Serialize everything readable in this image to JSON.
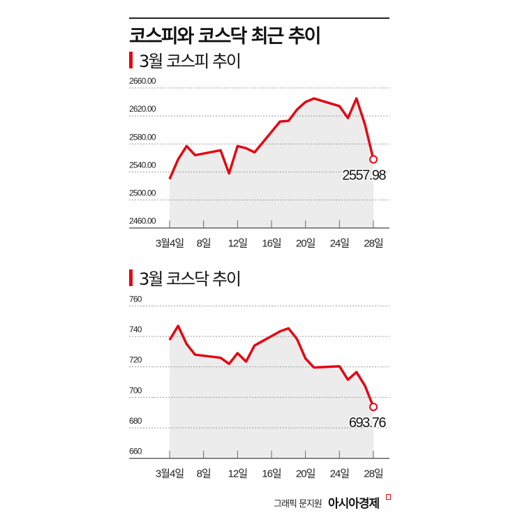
{
  "title": "코스피와 코스닥 최근 추이",
  "credit": "그래픽 문지원",
  "brand": "아시아경제",
  "colors": {
    "line": "#e30613",
    "fill": "#ececec",
    "grid": "#999999"
  },
  "chart_data": [
    {
      "type": "area",
      "title": "3월 코스피 추이",
      "x_ticks": [
        4,
        8,
        12,
        16,
        20,
        24,
        28
      ],
      "x_tick_labels": [
        "3월4일",
        "8일",
        "12일",
        "16일",
        "20일",
        "24일",
        "28일"
      ],
      "y_ticks": [
        2460,
        2500,
        2540,
        2580,
        2620,
        2660
      ],
      "y_tick_labels": [
        "2460.00",
        "2500.00",
        "2540.00",
        "2580.00",
        "2620.00",
        "2660.00"
      ],
      "ylim": [
        2460,
        2660
      ],
      "x": [
        4,
        5,
        6,
        7,
        10,
        11,
        12,
        13,
        14,
        17,
        18,
        19,
        20,
        21,
        24,
        25,
        26,
        27,
        28
      ],
      "values": [
        2530,
        2558,
        2577,
        2564,
        2571,
        2538,
        2577,
        2574,
        2568,
        2612,
        2613,
        2629,
        2640,
        2645,
        2634,
        2617,
        2645,
        2608,
        2557.98
      ],
      "last_label": "2557.98"
    },
    {
      "type": "area",
      "title": "3월 코스닥 추이",
      "x_ticks": [
        4,
        8,
        12,
        16,
        20,
        24,
        28
      ],
      "x_tick_labels": [
        "3월4일",
        "8일",
        "12일",
        "16일",
        "20일",
        "24일",
        "28일"
      ],
      "y_ticks": [
        660,
        680,
        700,
        720,
        740,
        760
      ],
      "y_tick_labels": [
        "660",
        "680",
        "700",
        "720",
        "740",
        "760"
      ],
      "ylim": [
        660,
        760
      ],
      "x": [
        4,
        5,
        6,
        7,
        10,
        11,
        12,
        13,
        14,
        17,
        18,
        19,
        20,
        21,
        24,
        25,
        26,
        27,
        28
      ],
      "values": [
        737.7,
        746.9,
        735,
        728,
        726,
        722,
        729,
        723.5,
        734,
        743.3,
        745.3,
        738.3,
        725.5,
        719.6,
        720.4,
        711.6,
        716.6,
        707.7,
        693.76
      ],
      "last_label": "693.76"
    }
  ]
}
